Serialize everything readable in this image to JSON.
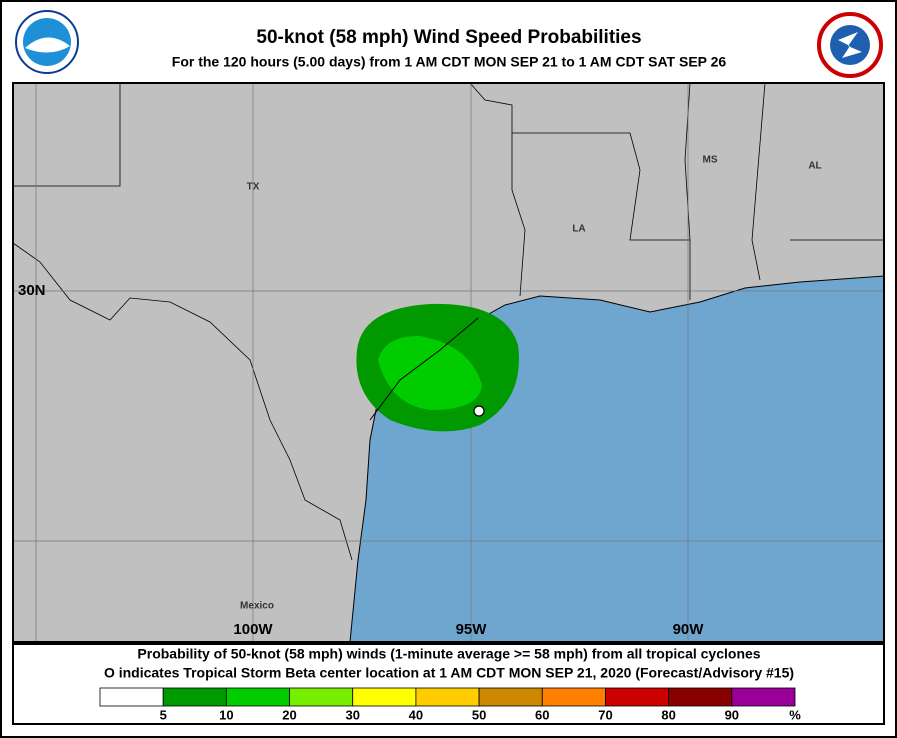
{
  "header": {
    "title": "50-knot (58 mph) Wind Speed Probabilities",
    "subtitle": "For the 120 hours (5.00 days) from 1 AM CDT MON SEP 21 to 1 AM CDT SAT SEP 26"
  },
  "map": {
    "labels": [
      "TX",
      "LA",
      "MS",
      "AL",
      "Mexico"
    ],
    "grid_labels": [
      "30N",
      "100W",
      "95W",
      "90W"
    ]
  },
  "footer": {
    "lines": [
      "Probability of 50-knot (58 mph) winds (1-minute average >= 58 mph) from all tropical cyclones",
      "O indicates Tropical Storm Beta center location at 1 AM CDT MON SEP 21, 2020 (Forecast/Advisory #15)"
    ]
  },
  "legend": {
    "colors": [
      "#ffffff",
      "#009900",
      "#00cc00",
      "#77ee00",
      "#ffff00",
      "#ffcc00",
      "#cc8800",
      "#ff8000",
      "#cc0000",
      "#880000",
      "#990099"
    ],
    "ticks": [
      5,
      10,
      20,
      30,
      40,
      50,
      60,
      70,
      80,
      90
    ],
    "unit": "%"
  }
}
